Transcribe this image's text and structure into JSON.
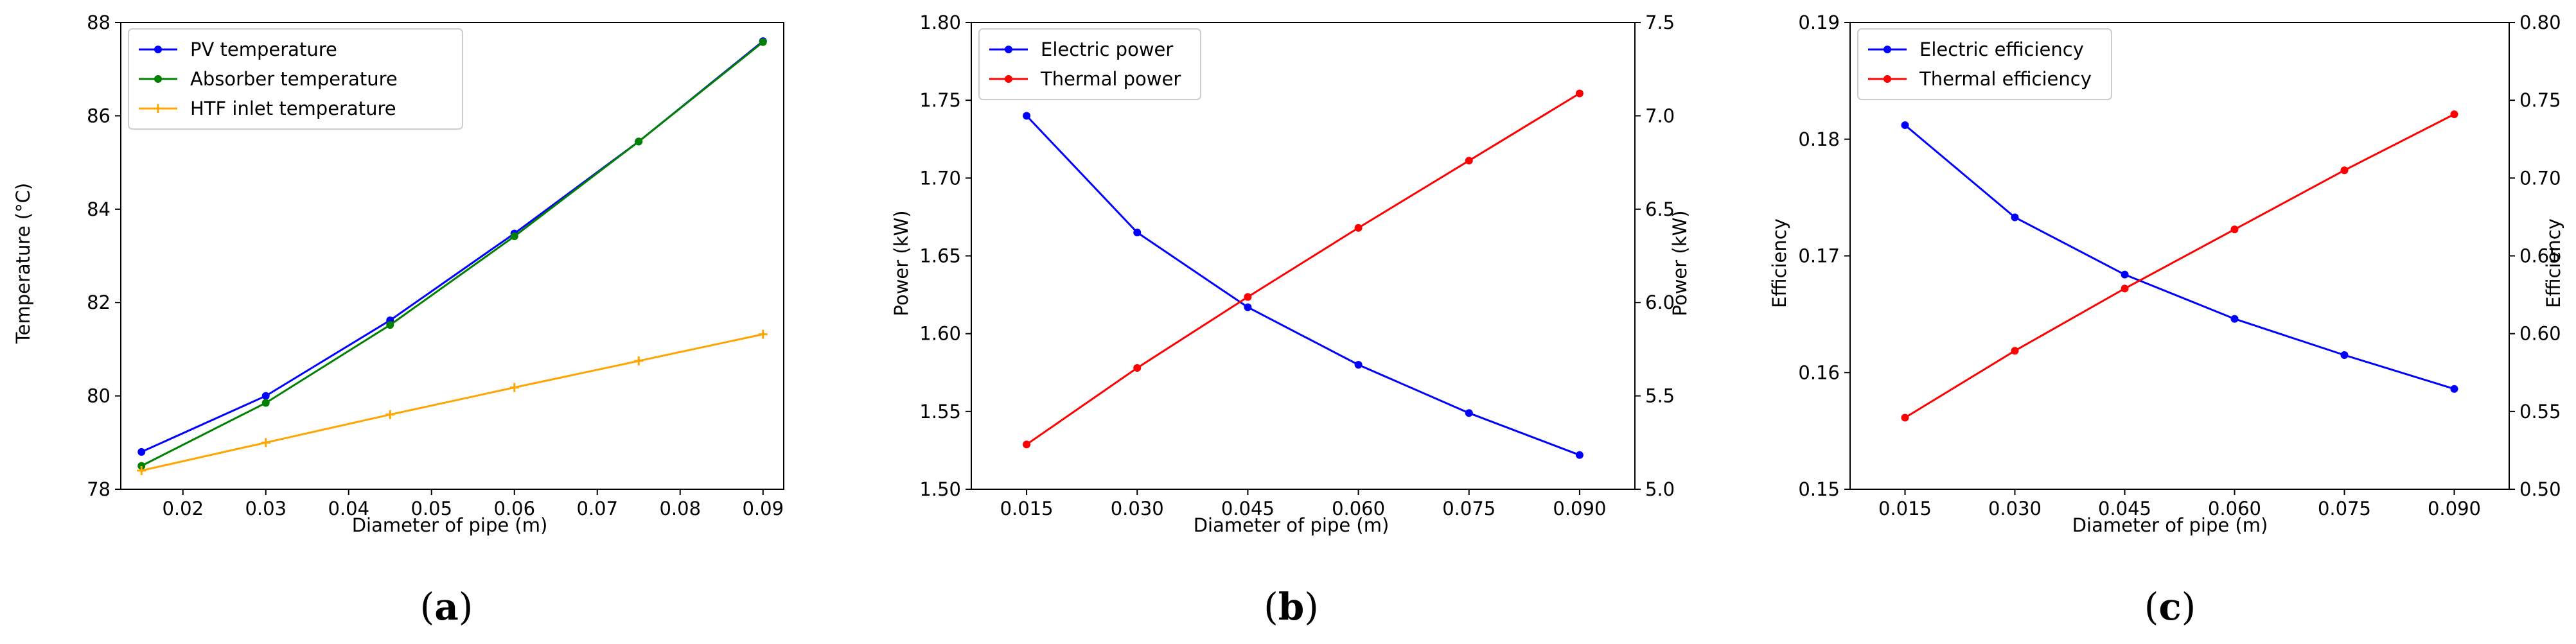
{
  "panel_labels": [
    "a",
    "b",
    "c"
  ],
  "chart_data": [
    {
      "type": "line",
      "panel": "a",
      "xlabel": "Diameter of pipe (m)",
      "ylabel": "Temperature (°C)",
      "xlim": [
        0.0125,
        0.0925
      ],
      "ylim": [
        78,
        88
      ],
      "xticks": [
        "0.02",
        "0.03",
        "0.04",
        "0.05",
        "0.06",
        "0.07",
        "0.08",
        "0.09"
      ],
      "xtick_values": [
        0.02,
        0.03,
        0.04,
        0.05,
        0.06,
        0.07,
        0.08,
        0.09
      ],
      "yticks": [
        "78",
        "80",
        "82",
        "84",
        "86",
        "88"
      ],
      "ytick_values": [
        78,
        80,
        82,
        84,
        86,
        88
      ],
      "grid": false,
      "legend_position": "top-left",
      "x": [
        0.015,
        0.03,
        0.045,
        0.06,
        0.075,
        0.09
      ],
      "series": [
        {
          "name": "PV temperature",
          "color": "#0000ff",
          "marker": "circle",
          "values": [
            78.8,
            80.0,
            81.62,
            83.48,
            85.45,
            87.6
          ]
        },
        {
          "name": "Absorber temperature",
          "color": "#008000",
          "marker": "circle",
          "values": [
            78.5,
            79.85,
            81.52,
            83.42,
            85.45,
            87.58
          ]
        },
        {
          "name": "HTF inlet temperature",
          "color": "#ffa500",
          "marker": "plus",
          "values": [
            78.4,
            79.0,
            79.6,
            80.18,
            80.75,
            81.32
          ]
        }
      ]
    },
    {
      "type": "line",
      "panel": "b",
      "xlabel": "Diameter of pipe (m)",
      "ylabel": "Power (kW)",
      "ylabel_right": "Power (kW)",
      "xlim": [
        0.0075,
        0.0975
      ],
      "ylim": [
        1.5,
        1.8
      ],
      "ylim_right": [
        5.0,
        7.5
      ],
      "xticks": [
        "0.015",
        "0.030",
        "0.045",
        "0.060",
        "0.075",
        "0.090"
      ],
      "xtick_values": [
        0.015,
        0.03,
        0.045,
        0.06,
        0.075,
        0.09
      ],
      "yticks": [
        "1.50",
        "1.55",
        "1.60",
        "1.65",
        "1.70",
        "1.75",
        "1.80"
      ],
      "ytick_values": [
        1.5,
        1.55,
        1.6,
        1.65,
        1.7,
        1.75,
        1.8
      ],
      "yticks_right": [
        "5.0",
        "5.5",
        "6.0",
        "6.5",
        "7.0",
        "7.5"
      ],
      "ytick_values_right": [
        5.0,
        5.5,
        6.0,
        6.5,
        7.0,
        7.5
      ],
      "grid": false,
      "legend_position": "top-left",
      "x": [
        0.015,
        0.03,
        0.045,
        0.06,
        0.075,
        0.09
      ],
      "series": [
        {
          "name": "Electric power",
          "color": "#0000ff",
          "marker": "circle",
          "axis": "left",
          "values": [
            1.74,
            1.665,
            1.617,
            1.58,
            1.549,
            1.522
          ]
        },
        {
          "name": "Thermal power",
          "color": "#ff0000",
          "marker": "circle",
          "axis": "right",
          "values": [
            5.24,
            5.65,
            6.03,
            6.4,
            6.76,
            7.12
          ]
        }
      ]
    },
    {
      "type": "line",
      "panel": "c",
      "xlabel": "Diameter of pipe (m)",
      "ylabel": "Efficiency",
      "ylabel_right": "Efficiency",
      "xlim": [
        0.0075,
        0.0975
      ],
      "ylim": [
        0.15,
        0.19
      ],
      "ylim_right": [
        0.5,
        0.8
      ],
      "xticks": [
        "0.015",
        "0.030",
        "0.045",
        "0.060",
        "0.075",
        "0.090"
      ],
      "xtick_values": [
        0.015,
        0.03,
        0.045,
        0.06,
        0.075,
        0.09
      ],
      "yticks": [
        "0.15",
        "0.16",
        "0.17",
        "0.18",
        "0.19"
      ],
      "ytick_values": [
        0.15,
        0.16,
        0.17,
        0.18,
        0.19
      ],
      "yticks_right": [
        "0.50",
        "0.55",
        "0.60",
        "0.65",
        "0.70",
        "0.75",
        "0.80"
      ],
      "ytick_values_right": [
        0.5,
        0.55,
        0.6,
        0.65,
        0.7,
        0.75,
        0.8
      ],
      "grid": false,
      "legend_position": "top-left",
      "x": [
        0.015,
        0.03,
        0.045,
        0.06,
        0.075,
        0.09
      ],
      "series": [
        {
          "name": "Electric efficiency",
          "color": "#0000ff",
          "marker": "circle",
          "axis": "left",
          "values": [
            0.1812,
            0.1733,
            0.1684,
            0.1646,
            0.1615,
            0.1586
          ]
        },
        {
          "name": "Thermal efficiency",
          "color": "#ff0000",
          "marker": "circle",
          "axis": "right",
          "values": [
            0.546,
            0.589,
            0.629,
            0.667,
            0.705,
            0.741
          ]
        }
      ]
    }
  ]
}
